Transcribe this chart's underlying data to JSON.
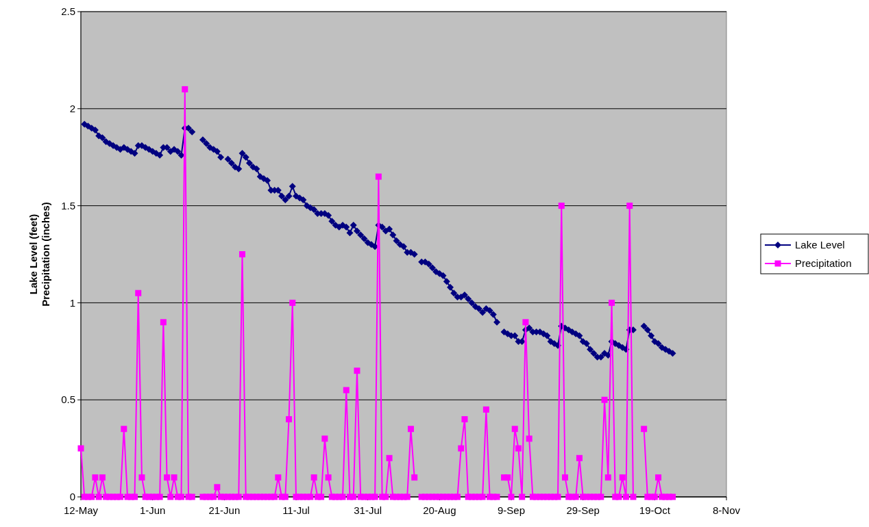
{
  "chart_data": {
    "type": "line",
    "ylabel": "Lake Level (feet)\nPrecipitation (inches)",
    "x": [
      "--05-12",
      "--05-13",
      "--05-14",
      "--05-15",
      "--05-16",
      "--05-17",
      "--05-18",
      "--05-19",
      "--05-20",
      "--05-21",
      "--05-22",
      "--05-23",
      "--05-24",
      "--05-25",
      "--05-26",
      "--05-27",
      "--05-28",
      "--05-29",
      "--05-30",
      "--05-31",
      "--06-01",
      "--06-02",
      "--06-03",
      "--06-04",
      "--06-05",
      "--06-06",
      "--06-07",
      "--06-08",
      "--06-09",
      "--06-10",
      "--06-11",
      "--06-12",
      "--06-13",
      "--06-14",
      "--06-15",
      "--06-16",
      "--06-17",
      "--06-18",
      "--06-19",
      "--06-20",
      "--06-21",
      "--06-22",
      "--06-23",
      "--06-24",
      "--06-25",
      "--06-26",
      "--06-27",
      "--06-28",
      "--06-29",
      "--06-30",
      "--07-01",
      "--07-02",
      "--07-03",
      "--07-04",
      "--07-05",
      "--07-06",
      "--07-07",
      "--07-08",
      "--07-09",
      "--07-10",
      "--07-11",
      "--07-12",
      "--07-13",
      "--07-14",
      "--07-15",
      "--07-16",
      "--07-17",
      "--07-18",
      "--07-19",
      "--07-20",
      "--07-21",
      "--07-22",
      "--07-23",
      "--07-24",
      "--07-25",
      "--07-26",
      "--07-27",
      "--07-28",
      "--07-29",
      "--07-30",
      "--07-31",
      "--08-01",
      "--08-02",
      "--08-03",
      "--08-04",
      "--08-05",
      "--08-06",
      "--08-07",
      "--08-08",
      "--08-09",
      "--08-10",
      "--08-11",
      "--08-12",
      "--08-13",
      "--08-14",
      "--08-15",
      "--08-16",
      "--08-17",
      "--08-18",
      "--08-19",
      "--08-20",
      "--08-21",
      "--08-22",
      "--08-23",
      "--08-24",
      "--08-25",
      "--08-26",
      "--08-27",
      "--08-28",
      "--08-29",
      "--08-30",
      "--08-31",
      "--09-01",
      "--09-02",
      "--09-03",
      "--09-04",
      "--09-05",
      "--09-06",
      "--09-07",
      "--09-08",
      "--09-09",
      "--09-10",
      "--09-11",
      "--09-12",
      "--09-13",
      "--09-14",
      "--09-15",
      "--09-16",
      "--09-17",
      "--09-18",
      "--09-19",
      "--09-20",
      "--09-21",
      "--09-22",
      "--09-23",
      "--09-24",
      "--09-25",
      "--09-26",
      "--09-27",
      "--09-28",
      "--09-29",
      "--09-30",
      "--10-01",
      "--10-02",
      "--10-03",
      "--10-04",
      "--10-05",
      "--10-06",
      "--10-07",
      "--10-08",
      "--10-09",
      "--10-10",
      "--10-11",
      "--10-12",
      "--10-13",
      "--10-14",
      "--10-15",
      "--10-16",
      "--10-17",
      "--10-18",
      "--10-19",
      "--10-20",
      "--10-21",
      "--10-22",
      "--10-23",
      "--10-24"
    ],
    "series": [
      {
        "name": "Lake Level",
        "color": "#000080",
        "marker": "diamond",
        "values": [
          null,
          1.92,
          1.91,
          1.9,
          1.89,
          1.86,
          1.85,
          1.83,
          1.82,
          1.81,
          1.8,
          1.79,
          1.8,
          1.79,
          1.78,
          1.77,
          1.81,
          1.81,
          1.8,
          1.79,
          1.78,
          1.77,
          1.76,
          1.8,
          1.8,
          1.78,
          1.79,
          1.78,
          1.76,
          1.9,
          1.9,
          1.88,
          null,
          null,
          1.84,
          1.82,
          1.8,
          1.79,
          1.78,
          1.75,
          null,
          1.74,
          1.72,
          1.7,
          1.69,
          1.77,
          1.75,
          1.72,
          1.7,
          1.69,
          1.65,
          1.64,
          1.63,
          1.58,
          1.58,
          1.58,
          1.55,
          1.53,
          1.55,
          1.6,
          1.55,
          1.54,
          1.53,
          1.5,
          1.49,
          1.48,
          1.46,
          1.46,
          1.46,
          1.45,
          1.42,
          1.4,
          1.39,
          1.4,
          1.39,
          1.36,
          1.4,
          1.37,
          1.35,
          1.33,
          1.31,
          1.3,
          1.29,
          1.4,
          1.39,
          1.37,
          1.38,
          1.35,
          1.32,
          1.3,
          1.29,
          1.26,
          1.26,
          1.25,
          null,
          1.21,
          1.21,
          1.2,
          1.18,
          1.16,
          1.15,
          1.14,
          1.11,
          1.08,
          1.05,
          1.03,
          1.03,
          1.04,
          1.02,
          1.0,
          0.98,
          0.97,
          0.95,
          0.97,
          0.96,
          0.94,
          0.9,
          null,
          0.85,
          0.84,
          0.83,
          0.83,
          0.8,
          0.8,
          0.86,
          0.87,
          0.85,
          0.85,
          0.85,
          0.84,
          0.83,
          0.8,
          0.79,
          0.78,
          0.88,
          0.87,
          0.86,
          0.85,
          0.84,
          0.83,
          0.8,
          0.79,
          0.76,
          0.74,
          0.72,
          0.72,
          0.74,
          0.73,
          0.8,
          0.79,
          0.78,
          0.77,
          0.76,
          0.86,
          0.86,
          null,
          null,
          0.88,
          0.86,
          0.83,
          0.8,
          0.79,
          0.77,
          0.76,
          0.75,
          0.74
        ]
      },
      {
        "name": "Precipitation",
        "color": "#ff00ff",
        "marker": "square",
        "values": [
          0.25,
          0,
          0,
          0,
          0.1,
          0,
          0.1,
          0,
          0,
          0,
          0,
          0,
          0.35,
          0,
          0,
          0,
          1.05,
          0.1,
          0,
          0,
          0,
          0,
          0,
          0.9,
          0.1,
          0,
          0.1,
          0,
          0,
          2.1,
          0,
          0,
          null,
          null,
          0,
          0,
          0,
          0,
          0.05,
          0,
          0,
          0,
          0,
          0,
          0,
          1.25,
          0,
          0,
          0,
          0,
          0,
          0,
          0,
          0,
          0,
          0.1,
          0,
          0,
          0.4,
          1.0,
          0,
          0,
          0,
          0,
          0,
          0.1,
          0,
          0,
          0.3,
          0.1,
          0,
          0,
          0,
          0,
          0.55,
          0,
          0,
          0.65,
          0,
          0,
          0,
          0,
          0,
          1.65,
          0,
          0,
          0.2,
          0,
          0,
          0,
          0,
          0,
          0.35,
          0.1,
          null,
          0,
          0,
          0,
          0,
          0,
          0,
          0,
          0,
          0,
          0,
          0,
          0.25,
          0.4,
          0,
          0,
          0,
          0,
          0,
          0.45,
          0,
          0,
          0,
          null,
          0.1,
          0.1,
          0,
          0.35,
          0.25,
          0,
          0.9,
          0.3,
          0,
          0,
          0,
          0,
          0,
          0,
          0,
          0,
          1.5,
          0.1,
          0,
          0,
          0,
          0.2,
          0,
          0,
          0,
          0,
          0,
          0,
          0.5,
          0.1,
          1.0,
          0,
          0,
          0.1,
          0,
          1.5,
          0,
          null,
          null,
          0.35,
          0,
          0,
          0,
          0.1,
          0,
          0,
          0,
          0
        ]
      }
    ],
    "xlim": [
      "--05-12",
      "--11-08"
    ],
    "xticks": [
      {
        "value": "--05-12",
        "label": "12-May"
      },
      {
        "value": "--06-01",
        "label": "1-Jun"
      },
      {
        "value": "--06-21",
        "label": "21-Jun"
      },
      {
        "value": "--07-11",
        "label": "11-Jul"
      },
      {
        "value": "--07-31",
        "label": "31-Jul"
      },
      {
        "value": "--08-20",
        "label": "20-Aug"
      },
      {
        "value": "--09-09",
        "label": "9-Sep"
      },
      {
        "value": "--09-29",
        "label": "29-Sep"
      },
      {
        "value": "--10-19",
        "label": "19-Oct"
      },
      {
        "value": "--11-08",
        "label": "8-Nov"
      }
    ],
    "ylim": [
      0,
      2.5
    ],
    "yticks": [
      0,
      0.5,
      1,
      1.5,
      2,
      2.5
    ],
    "grid": "y",
    "legend": "right",
    "line_style": "solid"
  }
}
